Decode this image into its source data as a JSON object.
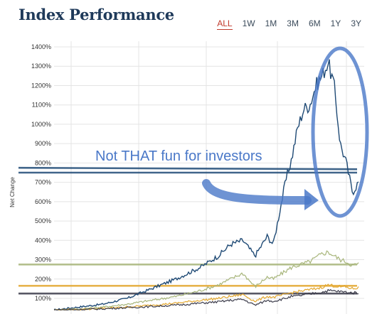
{
  "header": {
    "title": "Index Performance",
    "ranges": [
      "ALL",
      "1W",
      "1M",
      "3M",
      "6M",
      "1Y",
      "3Y"
    ],
    "active_range": "ALL"
  },
  "chart_data": {
    "type": "line",
    "ylabel": "Net Change",
    "ylim": [
      50,
      1420
    ],
    "yticks": [
      "100%",
      "200%",
      "300%",
      "400%",
      "500%",
      "600%",
      "700%",
      "800%",
      "900%",
      "1000%",
      "1100%",
      "1200%",
      "1300%",
      "1400%"
    ],
    "ytick_values": [
      100,
      200,
      300,
      400,
      500,
      600,
      700,
      800,
      900,
      1000,
      1100,
      1200,
      1300,
      1400
    ],
    "grid": true,
    "x": [
      0,
      0.08,
      0.16,
      0.24,
      0.32,
      0.4,
      0.48,
      0.54,
      0.58,
      0.62,
      0.66,
      0.7,
      0.72,
      0.76,
      0.78,
      0.8,
      0.82,
      0.84,
      0.86,
      0.88,
      0.9,
      0.92,
      0.94,
      0.96,
      0.98,
      1.0
    ],
    "series": [
      {
        "color": "#1f4a75",
        "values": [
          40,
          55,
          70,
          100,
          150,
          200,
          260,
          320,
          380,
          400,
          320,
          420,
          380,
          700,
          820,
          980,
          1080,
          1100,
          1200,
          1250,
          1320,
          1200,
          900,
          800,
          650,
          700
        ]
      },
      {
        "color": "#a7b57a",
        "values": [
          40,
          45,
          55,
          70,
          90,
          110,
          140,
          170,
          200,
          230,
          160,
          210,
          200,
          240,
          260,
          270,
          280,
          290,
          310,
          330,
          340,
          320,
          300,
          290,
          270,
          280
        ]
      },
      {
        "color": "#e3a72f",
        "values": [
          40,
          42,
          48,
          55,
          65,
          75,
          90,
          100,
          110,
          120,
          85,
          110,
          105,
          120,
          130,
          135,
          140,
          145,
          150,
          158,
          170,
          165,
          160,
          158,
          150,
          155
        ]
      },
      {
        "color": "#3b3b4a",
        "values": [
          40,
          42,
          46,
          52,
          58,
          65,
          75,
          82,
          90,
          95,
          65,
          90,
          85,
          100,
          110,
          112,
          118,
          122,
          128,
          132,
          140,
          138,
          135,
          132,
          128,
          130
        ]
      }
    ],
    "reference_lines": [
      {
        "value": 775,
        "color": "#1f4a75"
      },
      {
        "value": 750,
        "color": "#1f4a75"
      },
      {
        "value": 275,
        "color": "#a7b57a"
      },
      {
        "value": 165,
        "color": "#e3a72f"
      },
      {
        "value": 125,
        "color": "#3b3b4a"
      }
    ],
    "annotation": {
      "text": "Not THAT fun for investors",
      "color": "#4a78c8"
    }
  }
}
